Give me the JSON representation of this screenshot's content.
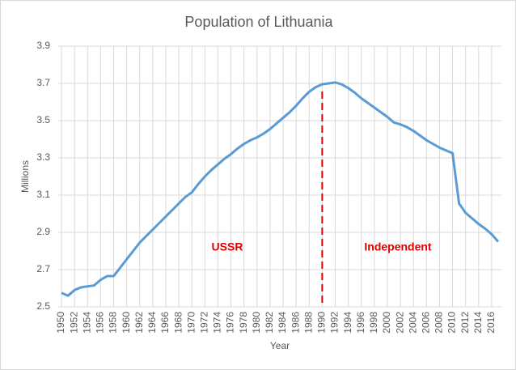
{
  "chart_data": {
    "type": "line",
    "title": "Population of Lithuania",
    "x_label": "Year",
    "y_label": "Millions",
    "x": [
      1950,
      1951,
      1952,
      1953,
      1954,
      1955,
      1956,
      1957,
      1958,
      1959,
      1960,
      1961,
      1962,
      1963,
      1964,
      1965,
      1966,
      1967,
      1968,
      1969,
      1970,
      1971,
      1972,
      1973,
      1974,
      1975,
      1976,
      1977,
      1978,
      1979,
      1980,
      1981,
      1982,
      1983,
      1984,
      1985,
      1986,
      1987,
      1988,
      1989,
      1990,
      1991,
      1992,
      1993,
      1994,
      1995,
      1996,
      1997,
      1998,
      1999,
      2000,
      2001,
      2002,
      2003,
      2004,
      2005,
      2006,
      2007,
      2008,
      2009,
      2010,
      2011,
      2012,
      2013,
      2014,
      2015,
      2016,
      2017
    ],
    "series": [
      {
        "name": "Population",
        "color": "#5b9bd5",
        "values": [
          2.575,
          2.56,
          2.59,
          2.605,
          2.61,
          2.615,
          2.645,
          2.665,
          2.665,
          2.71,
          2.755,
          2.8,
          2.845,
          2.88,
          2.915,
          2.95,
          2.985,
          3.02,
          3.055,
          3.09,
          3.115,
          3.16,
          3.2,
          3.235,
          3.265,
          3.295,
          3.32,
          3.35,
          3.375,
          3.395,
          3.41,
          3.43,
          3.455,
          3.485,
          3.515,
          3.545,
          3.58,
          3.62,
          3.655,
          3.68,
          3.695,
          3.7,
          3.705,
          3.695,
          3.675,
          3.65,
          3.62,
          3.595,
          3.57,
          3.545,
          3.52,
          3.49,
          3.48,
          3.465,
          3.445,
          3.42,
          3.395,
          3.375,
          3.355,
          3.34,
          3.325,
          3.055,
          3.005,
          2.975,
          2.945,
          2.92,
          2.89,
          2.85
        ]
      }
    ],
    "xlim": [
      1949.5,
      2017.5
    ],
    "xticks": [
      1950,
      1952,
      1954,
      1956,
      1958,
      1960,
      1962,
      1964,
      1966,
      1968,
      1970,
      1972,
      1974,
      1976,
      1978,
      1980,
      1982,
      1984,
      1986,
      1988,
      1990,
      1992,
      1994,
      1996,
      1998,
      2000,
      2002,
      2004,
      2006,
      2008,
      2010,
      2012,
      2014,
      2016
    ],
    "ylim": [
      2.5,
      3.9
    ],
    "yticks": [
      2.5,
      2.7,
      2.9,
      3.1,
      3.3,
      3.5,
      3.7,
      3.9
    ],
    "grid": true,
    "divider_x": 1990,
    "divider_color": "#e00000",
    "annotations": [
      {
        "text": "USSR",
        "color": "#e00000"
      },
      {
        "text": "Independent",
        "color": "#e00000"
      }
    ]
  }
}
